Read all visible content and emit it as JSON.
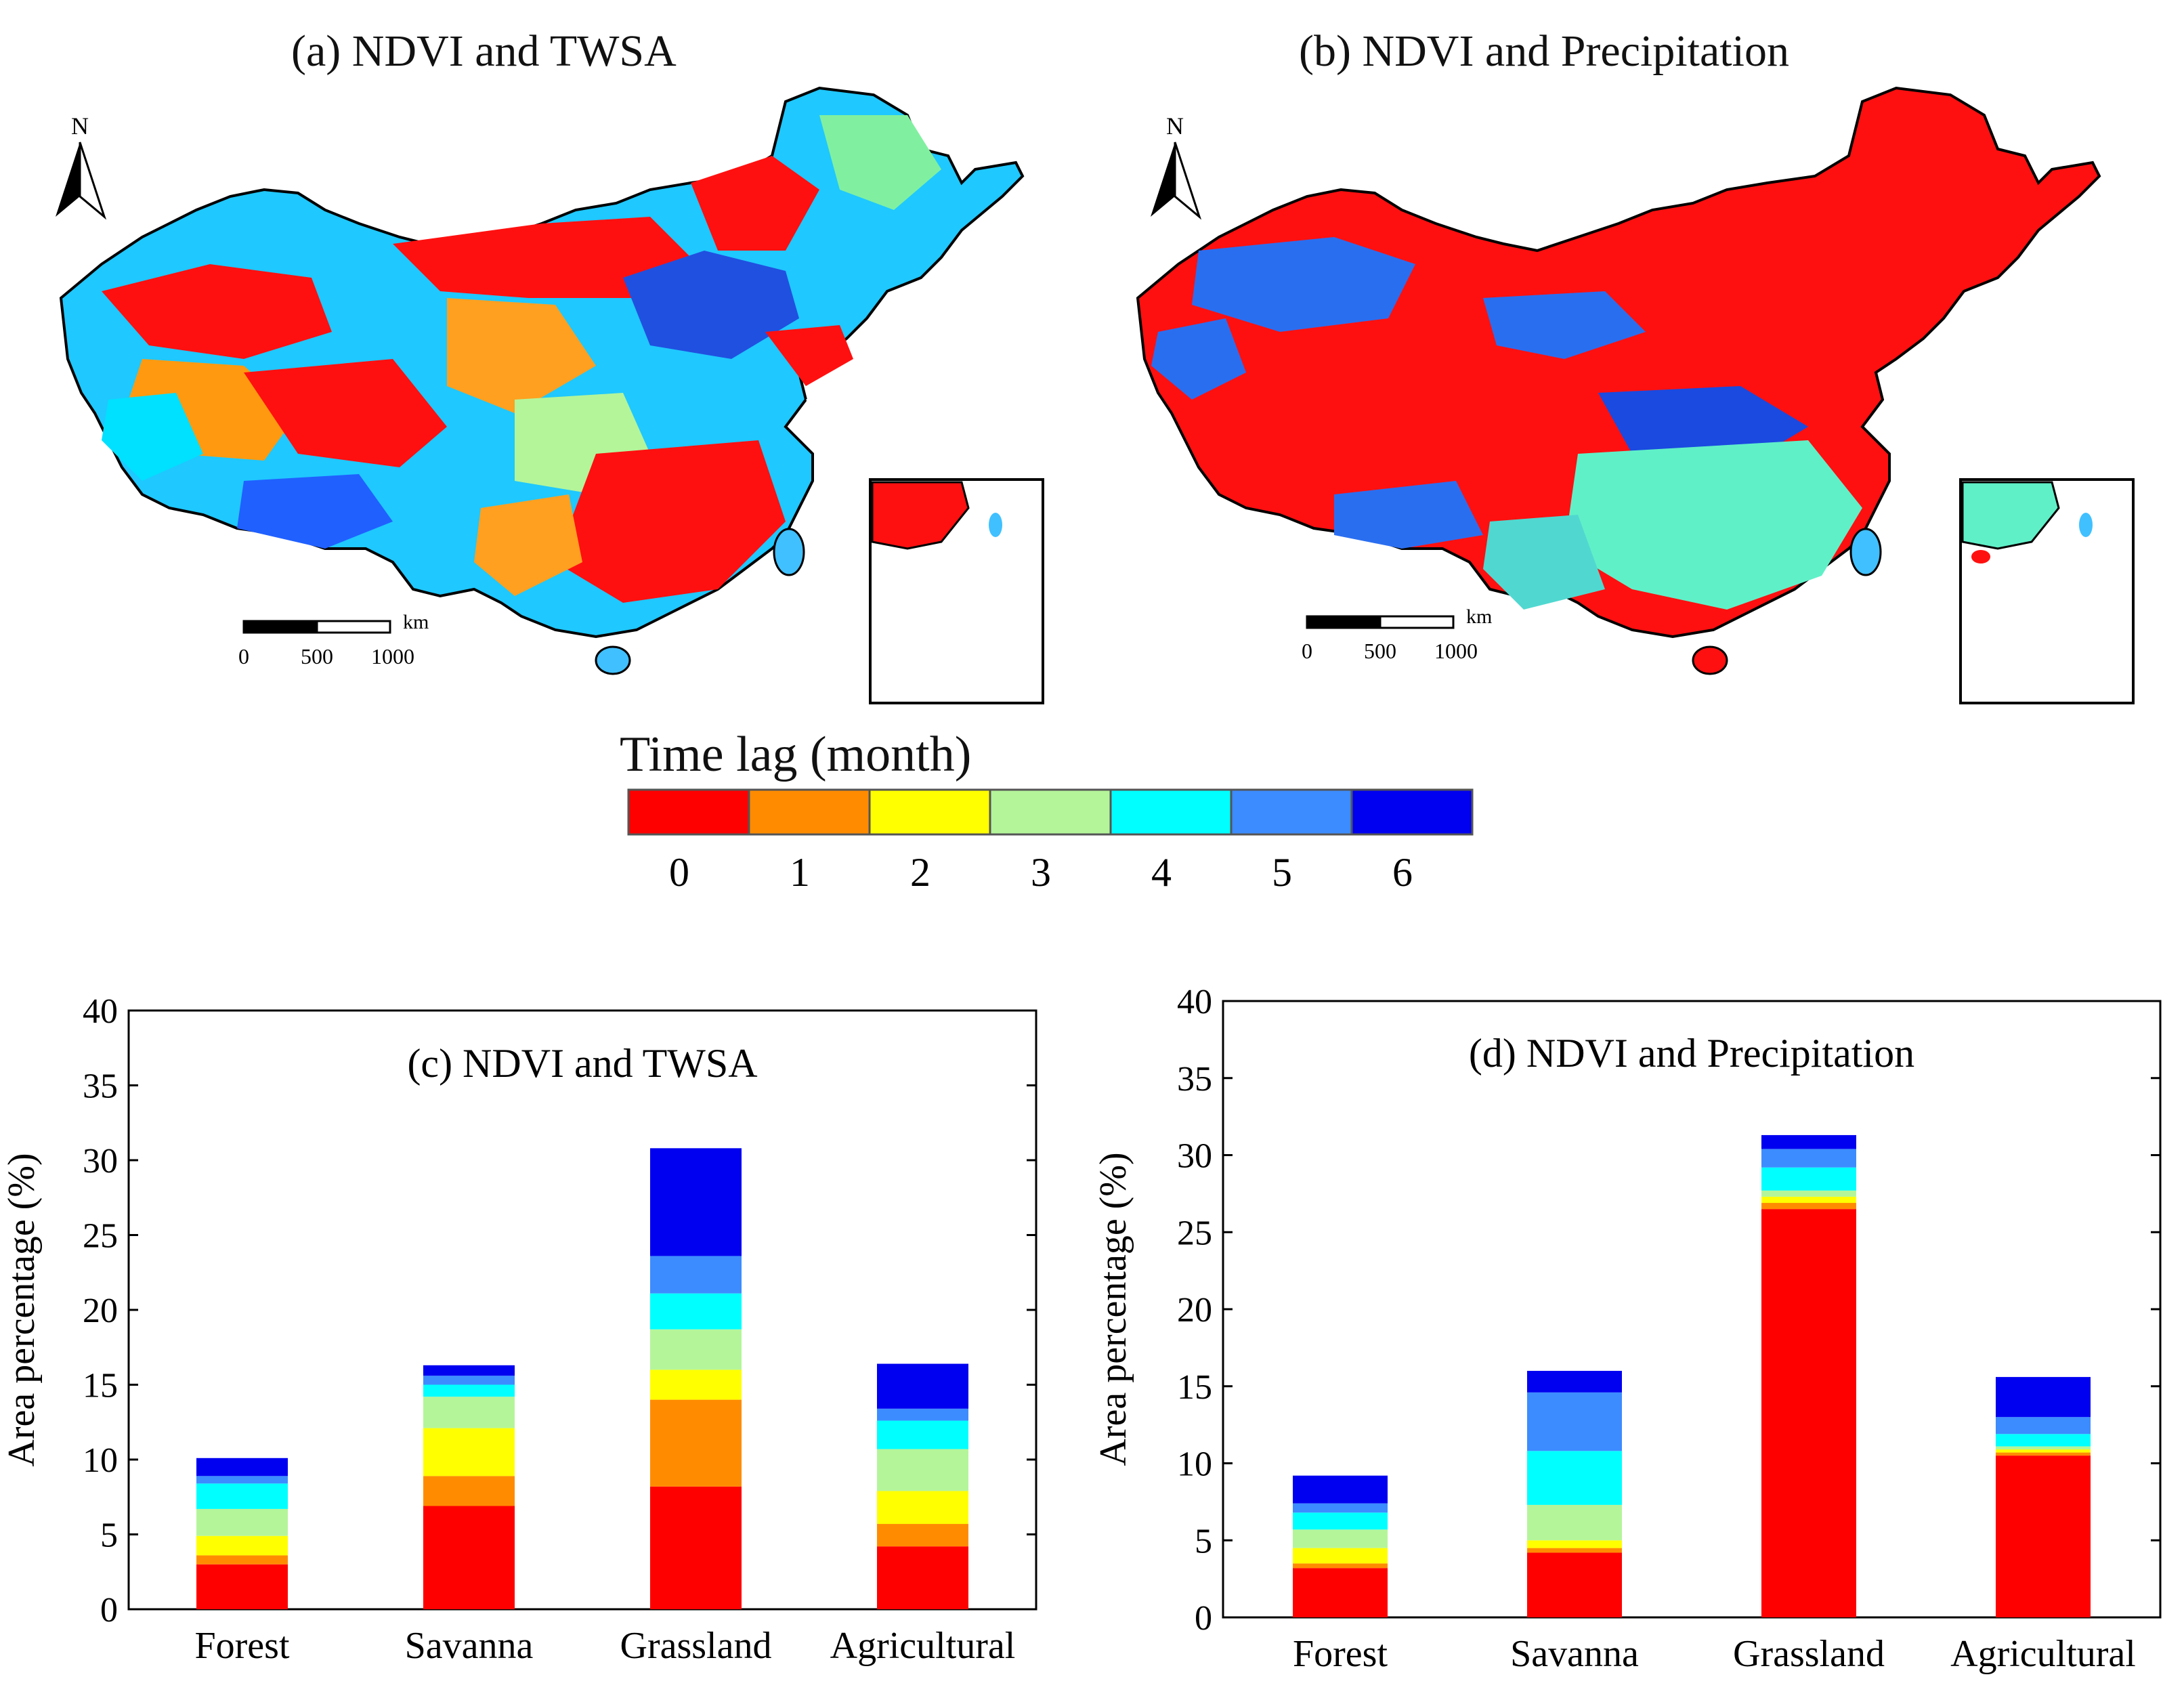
{
  "maps": [
    {
      "title": "(a)  NDVI and TWSA",
      "north": "N",
      "scale_unit": "km",
      "scale_ticks": [
        "0",
        "500",
        "1000"
      ]
    },
    {
      "title": "(b)  NDVI and Precipitation",
      "north": "N",
      "scale_unit": "km",
      "scale_ticks": [
        "0",
        "500",
        "1000"
      ]
    }
  ],
  "legend": {
    "title": "Time lag (month)",
    "items": [
      {
        "label": "0",
        "color": "#ff0000"
      },
      {
        "label": "1",
        "color": "#ff8c00"
      },
      {
        "label": "2",
        "color": "#ffff00"
      },
      {
        "label": "3",
        "color": "#b4f59a"
      },
      {
        "label": "4",
        "color": "#00ffff"
      },
      {
        "label": "5",
        "color": "#3c8cff"
      },
      {
        "label": "6",
        "color": "#0000f0"
      }
    ]
  },
  "chart_data": [
    {
      "type": "bar",
      "stacked": true,
      "title": "(c) NDVI and TWSA",
      "xlabel": "",
      "ylabel": "Area percentage (%)",
      "ylim": [
        0,
        40
      ],
      "yticks": [
        0,
        5,
        10,
        15,
        20,
        25,
        30,
        35,
        40
      ],
      "categories": [
        "Forest",
        "Savanna",
        "Grassland",
        "Agricultural"
      ],
      "series": [
        {
          "name": "0",
          "values": [
            3.0,
            6.9,
            8.2,
            4.2
          ]
        },
        {
          "name": "1",
          "values": [
            0.6,
            2.0,
            5.8,
            1.5
          ]
        },
        {
          "name": "2",
          "values": [
            1.3,
            3.2,
            2.0,
            2.2
          ]
        },
        {
          "name": "3",
          "values": [
            1.8,
            2.1,
            2.7,
            2.8
          ]
        },
        {
          "name": "4",
          "values": [
            1.7,
            0.8,
            2.4,
            1.9
          ]
        },
        {
          "name": "5",
          "values": [
            0.5,
            0.6,
            2.5,
            0.8
          ]
        },
        {
          "name": "6",
          "values": [
            1.2,
            0.7,
            7.2,
            3.0
          ]
        }
      ]
    },
    {
      "type": "bar",
      "stacked": true,
      "title": "(d) NDVI and Precipitation",
      "xlabel": "",
      "ylabel": "Area percentage (%)",
      "ylim": [
        0,
        40
      ],
      "yticks": [
        0,
        5,
        10,
        15,
        20,
        25,
        30,
        35,
        40
      ],
      "categories": [
        "Forest",
        "Savanna",
        "Grassland",
        "Agricultural"
      ],
      "series": [
        {
          "name": "0",
          "values": [
            3.2,
            4.2,
            26.5,
            10.5
          ]
        },
        {
          "name": "1",
          "values": [
            0.3,
            0.3,
            0.4,
            0.2
          ]
        },
        {
          "name": "2",
          "values": [
            1.0,
            0.5,
            0.4,
            0.2
          ]
        },
        {
          "name": "3",
          "values": [
            1.2,
            2.3,
            0.4,
            0.2
          ]
        },
        {
          "name": "4",
          "values": [
            1.1,
            3.5,
            1.5,
            0.8
          ]
        },
        {
          "name": "5",
          "values": [
            0.6,
            3.8,
            1.2,
            1.1
          ]
        },
        {
          "name": "6",
          "values": [
            1.8,
            1.4,
            0.9,
            2.6
          ]
        }
      ]
    }
  ]
}
